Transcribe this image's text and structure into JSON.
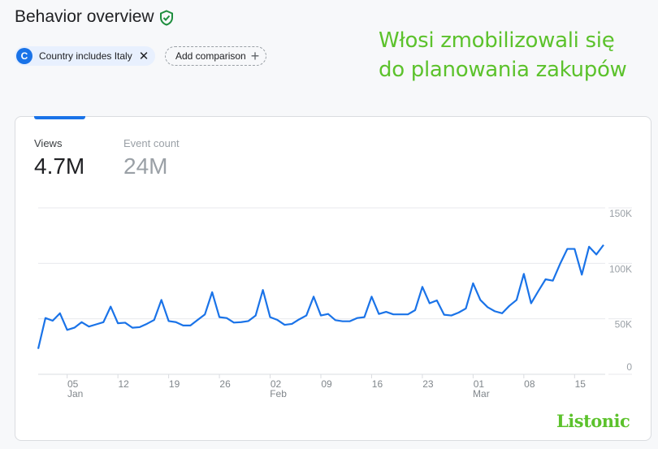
{
  "header": {
    "title": "Behavior overview",
    "verified_icon": "shield-check-icon",
    "verified_color": "#1e8e3e"
  },
  "filters": {
    "filter_chip": {
      "avatar_letter": "C",
      "label": "Country includes Italy",
      "remove_icon": "close-icon"
    },
    "add_comparison": {
      "label": "Add comparison",
      "icon": "plus-icon"
    }
  },
  "overlay_caption": {
    "line1": "Włosi zmobilizowali się",
    "line2": "do planowania zakupów"
  },
  "metrics": [
    {
      "label": "Views",
      "value": "4.7M",
      "active": true
    },
    {
      "label": "Event count",
      "value": "24M",
      "active": false
    }
  ],
  "branding": {
    "logo_text": "Listonic",
    "color": "#5cc22c"
  },
  "chart_data": {
    "type": "line",
    "series_color": "#1a73e8",
    "x_start": "2024-01-01",
    "x_end": "2024-03-19",
    "ylim": [
      0,
      150000
    ],
    "y_ticks": [
      {
        "value": 150000,
        "label": "150K"
      },
      {
        "value": 100000,
        "label": "100K"
      },
      {
        "value": 50000,
        "label": "50K"
      },
      {
        "value": 0,
        "label": "0"
      }
    ],
    "x_ticks": [
      {
        "date": "2024-01-05",
        "label": "05",
        "month": "Jan"
      },
      {
        "date": "2024-01-12",
        "label": "12",
        "month": ""
      },
      {
        "date": "2024-01-19",
        "label": "19",
        "month": ""
      },
      {
        "date": "2024-01-26",
        "label": "26",
        "month": ""
      },
      {
        "date": "2024-02-02",
        "label": "02",
        "month": "Feb"
      },
      {
        "date": "2024-02-09",
        "label": "09",
        "month": ""
      },
      {
        "date": "2024-02-16",
        "label": "16",
        "month": ""
      },
      {
        "date": "2024-02-23",
        "label": "23",
        "month": ""
      },
      {
        "date": "2024-03-01",
        "label": "01",
        "month": "Mar"
      },
      {
        "date": "2024-03-08",
        "label": "08",
        "month": ""
      },
      {
        "date": "2024-03-15",
        "label": "15",
        "month": ""
      }
    ],
    "grid": true,
    "values": [
      23000,
      50700,
      48300,
      55000,
      40000,
      42000,
      47000,
      43000,
      45000,
      47000,
      61000,
      46000,
      46500,
      42000,
      42500,
      45500,
      49000,
      67000,
      48000,
      47000,
      44000,
      44000,
      49000,
      54000,
      74000,
      51500,
      50700,
      46600,
      47000,
      48000,
      53000,
      76000,
      51500,
      49000,
      44600,
      45400,
      49500,
      53000,
      70000,
      53000,
      54400,
      48800,
      47800,
      47800,
      50700,
      51500,
      70000,
      54400,
      56300,
      54000,
      54000,
      54000,
      57800,
      78800,
      64000,
      66600,
      53700,
      53000,
      55600,
      59300,
      82000,
      67000,
      60500,
      56800,
      55000,
      61700,
      67000,
      90500,
      64000,
      75000,
      85600,
      84400,
      99500,
      113000,
      113000,
      89800,
      115000,
      108000,
      116600
    ]
  }
}
